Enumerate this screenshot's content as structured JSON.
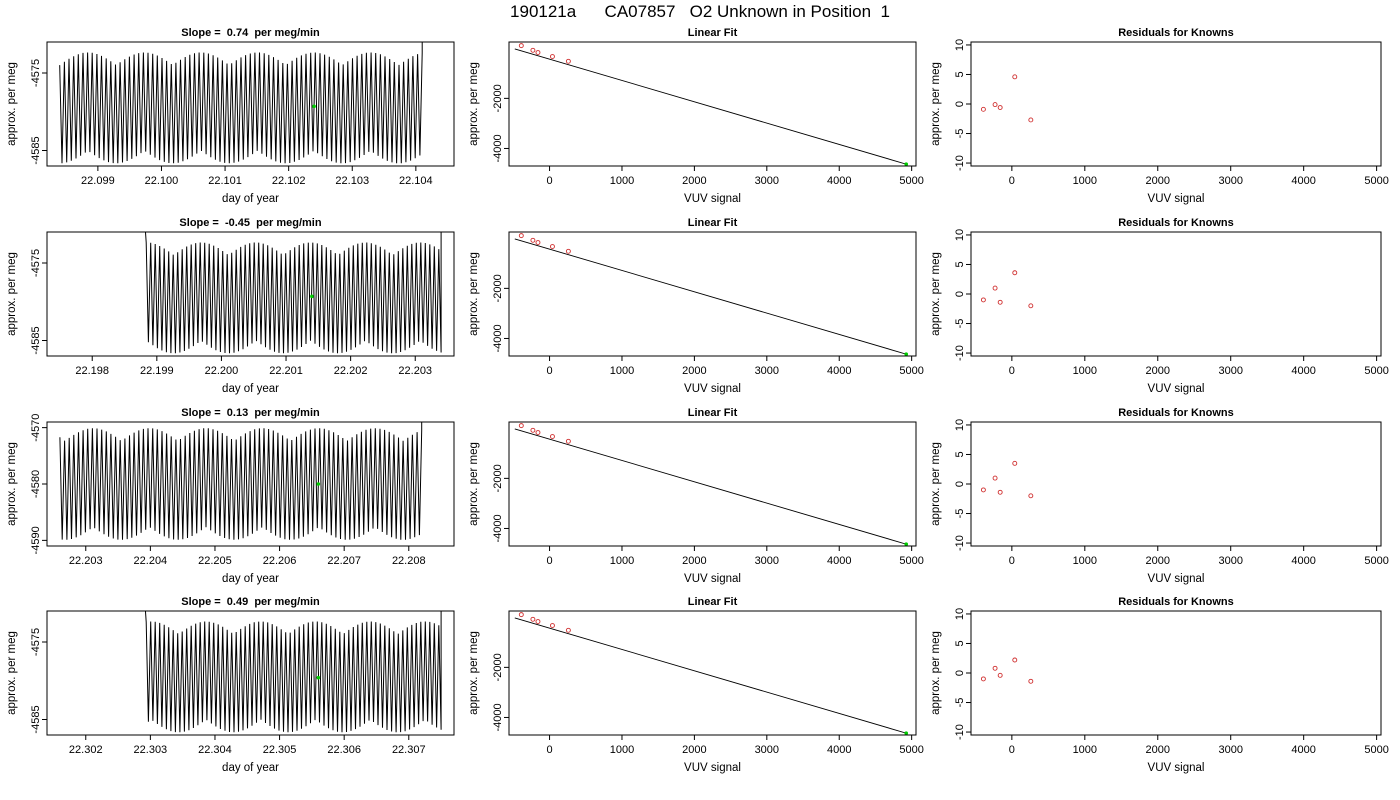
{
  "main_title": "190121a      CA07857   O2 Unknown in Position  1",
  "chart_data": [
    {
      "type": "line",
      "panel": "trace",
      "title": "Slope =  0.74  per meg/min",
      "xlabel": "day of year",
      "ylabel": "approx. per meg",
      "xlim": [
        22.0982,
        22.1046
      ],
      "ylim": [
        -4587,
        -4571
      ],
      "xticks": [
        22.099,
        22.1,
        22.101,
        22.102,
        22.103,
        22.104
      ],
      "xtick_labels": [
        "22.099",
        "22.100",
        "22.101",
        "22.102",
        "22.103",
        "22.104"
      ],
      "yticks": [
        -4575,
        -4585
      ],
      "ytick_labels": [
        "-4575",
        "-4585"
      ],
      "trace": {
        "x_start": 22.0984,
        "x_end": 22.1041,
        "center": -4579.5,
        "amplitude": 6.5,
        "cycles": 78,
        "start_offset": 0
      },
      "marker": {
        "x": 22.1024,
        "y": -4579.3,
        "color": "#00cc00"
      }
    },
    {
      "type": "scatter",
      "panel": "linear-fit",
      "title": "Linear Fit",
      "xlabel": "VUV signal",
      "ylabel": "approx. per meg",
      "xlim": [
        -560,
        5060
      ],
      "ylim": [
        -4700,
        250
      ],
      "xticks": [
        0,
        1000,
        2000,
        3000,
        4000,
        5000
      ],
      "xtick_labels": [
        "0",
        "1000",
        "2000",
        "3000",
        "4000",
        "5000"
      ],
      "yticks": [
        -2000,
        -4000
      ],
      "ytick_labels": [
        "-2000",
        "-4000"
      ],
      "fit_line": {
        "x": [
          -480,
          4940
        ],
        "y": [
          -25,
          -4640
        ]
      },
      "known_points": {
        "x": [
          -390,
          -230,
          -160,
          40,
          260
        ],
        "y": [
          105,
          -80,
          -170,
          -330,
          -520
        ]
      },
      "unknown_point": {
        "x": 4925,
        "y": -4628
      }
    },
    {
      "type": "scatter",
      "panel": "residuals",
      "title": "Residuals for Knowns",
      "xlabel": "VUV signal",
      "ylabel": "approx. per meg",
      "xlim": [
        -560,
        5060
      ],
      "ylim": [
        -10.5,
        10.5
      ],
      "xticks": [
        0,
        1000,
        2000,
        3000,
        4000,
        5000
      ],
      "xtick_labels": [
        "0",
        "1000",
        "2000",
        "3000",
        "4000",
        "5000"
      ],
      "yticks": [
        -10,
        -5,
        0,
        5,
        10
      ],
      "ytick_labels": [
        "-10",
        "-5",
        "0",
        "5",
        "10"
      ],
      "points": {
        "x": [
          -390,
          -230,
          -160,
          40,
          260
        ],
        "y": [
          -0.9,
          -0.1,
          -0.6,
          4.6,
          -2.7
        ]
      }
    },
    {
      "type": "line",
      "panel": "trace",
      "title": "Slope =  -0.45  per meg/min",
      "xlabel": "day of year",
      "ylabel": "approx. per meg",
      "xlim": [
        22.1973,
        22.2036
      ],
      "ylim": [
        -4587,
        -4571
      ],
      "xticks": [
        22.198,
        22.199,
        22.2,
        22.201,
        22.202,
        22.203
      ],
      "xtick_labels": [
        "22.198",
        "22.199",
        "22.200",
        "22.201",
        "22.202",
        "22.203"
      ],
      "yticks": [
        -4575,
        -4585
      ],
      "ytick_labels": [
        "-4575",
        "-4585"
      ],
      "trace": {
        "x_start": 22.1988,
        "x_end": 22.2034,
        "center": -4579.5,
        "amplitude": 6.5,
        "cycles": 66,
        "start_offset": 0.25
      },
      "marker": {
        "x": 22.2014,
        "y": -4579.3,
        "color": "#00cc00"
      }
    },
    {
      "type": "scatter",
      "panel": "linear-fit",
      "title": "Linear Fit",
      "xlabel": "VUV signal",
      "ylabel": "approx. per meg",
      "xlim": [
        -560,
        5060
      ],
      "ylim": [
        -4700,
        250
      ],
      "xticks": [
        0,
        1000,
        2000,
        3000,
        4000,
        5000
      ],
      "xtick_labels": [
        "0",
        "1000",
        "2000",
        "3000",
        "4000",
        "5000"
      ],
      "yticks": [
        -2000,
        -4000
      ],
      "ytick_labels": [
        "-2000",
        "-4000"
      ],
      "fit_line": {
        "x": [
          -480,
          4940
        ],
        "y": [
          -25,
          -4640
        ]
      },
      "known_points": {
        "x": [
          -390,
          -230,
          -160,
          40,
          260
        ],
        "y": [
          105,
          -80,
          -170,
          -330,
          -520
        ]
      },
      "unknown_point": {
        "x": 4925,
        "y": -4628
      }
    },
    {
      "type": "scatter",
      "panel": "residuals",
      "title": "Residuals for Knowns",
      "xlabel": "VUV signal",
      "ylabel": "approx. per meg",
      "xlim": [
        -560,
        5060
      ],
      "ylim": [
        -10.5,
        10.5
      ],
      "xticks": [
        0,
        1000,
        2000,
        3000,
        4000,
        5000
      ],
      "xtick_labels": [
        "0",
        "1000",
        "2000",
        "3000",
        "4000",
        "5000"
      ],
      "yticks": [
        -10,
        -5,
        0,
        5,
        10
      ],
      "ytick_labels": [
        "-10",
        "-5",
        "0",
        "5",
        "10"
      ],
      "points": {
        "x": [
          -390,
          -230,
          -160,
          40,
          260
        ],
        "y": [
          -1.0,
          1.0,
          -1.4,
          3.6,
          -2.0
        ]
      }
    },
    {
      "type": "line",
      "panel": "trace",
      "title": "Slope =  0.13  per meg/min",
      "xlabel": "day of year",
      "ylabel": "approx. per meg",
      "xlim": [
        22.2024,
        22.2087
      ],
      "ylim": [
        -4591,
        -4569
      ],
      "xticks": [
        22.203,
        22.204,
        22.205,
        22.206,
        22.207,
        22.208
      ],
      "xtick_labels": [
        "22.203",
        "22.204",
        "22.205",
        "22.206",
        "22.207",
        "22.208"
      ],
      "yticks": [
        -4570,
        -4580,
        -4590
      ],
      "ytick_labels": [
        "-4570",
        "-4580",
        "-4590"
      ],
      "trace": {
        "x_start": 22.2026,
        "x_end": 22.2082,
        "center": -4580,
        "amplitude": 9,
        "cycles": 78,
        "start_offset": 0
      },
      "marker": {
        "x": 22.2066,
        "y": -4580,
        "color": "#00cc00"
      }
    },
    {
      "type": "scatter",
      "panel": "linear-fit",
      "title": "Linear Fit",
      "xlabel": "VUV signal",
      "ylabel": "approx. per meg",
      "xlim": [
        -560,
        5060
      ],
      "ylim": [
        -4700,
        250
      ],
      "xticks": [
        0,
        1000,
        2000,
        3000,
        4000,
        5000
      ],
      "xtick_labels": [
        "0",
        "1000",
        "2000",
        "3000",
        "4000",
        "5000"
      ],
      "yticks": [
        -2000,
        -4000
      ],
      "ytick_labels": [
        "-2000",
        "-4000"
      ],
      "fit_line": {
        "x": [
          -480,
          4940
        ],
        "y": [
          -25,
          -4640
        ]
      },
      "known_points": {
        "x": [
          -390,
          -230,
          -160,
          40,
          260
        ],
        "y": [
          105,
          -80,
          -170,
          -330,
          -520
        ]
      },
      "unknown_point": {
        "x": 4925,
        "y": -4628
      }
    },
    {
      "type": "scatter",
      "panel": "residuals",
      "title": "Residuals for Knowns",
      "xlabel": "VUV signal",
      "ylabel": "approx. per meg",
      "xlim": [
        -560,
        5060
      ],
      "ylim": [
        -10.5,
        10.5
      ],
      "xticks": [
        0,
        1000,
        2000,
        3000,
        4000,
        5000
      ],
      "xtick_labels": [
        "0",
        "1000",
        "2000",
        "3000",
        "4000",
        "5000"
      ],
      "yticks": [
        -10,
        -5,
        0,
        5,
        10
      ],
      "ytick_labels": [
        "-10",
        "-5",
        "0",
        "5",
        "10"
      ],
      "points": {
        "x": [
          -390,
          -230,
          -160,
          40,
          260
        ],
        "y": [
          -1.0,
          1.0,
          -1.4,
          3.5,
          -2.0
        ]
      }
    },
    {
      "type": "line",
      "panel": "trace",
      "title": "Slope =  0.49  per meg/min",
      "xlabel": "day of year",
      "ylabel": "approx. per meg",
      "xlim": [
        22.3014,
        22.3077
      ],
      "ylim": [
        -4587,
        -4571
      ],
      "xticks": [
        22.302,
        22.303,
        22.304,
        22.305,
        22.306,
        22.307
      ],
      "xtick_labels": [
        "22.302",
        "22.303",
        "22.304",
        "22.305",
        "22.306",
        "22.307"
      ],
      "yticks": [
        -4575,
        -4585
      ],
      "ytick_labels": [
        "-4575",
        "-4585"
      ],
      "trace": {
        "x_start": 22.3029,
        "x_end": 22.3075,
        "center": -4579.5,
        "amplitude": 6.5,
        "cycles": 66,
        "start_offset": 0.25
      },
      "marker": {
        "x": 22.3056,
        "y": -4579.6,
        "color": "#00cc00"
      }
    },
    {
      "type": "scatter",
      "panel": "linear-fit",
      "title": "Linear Fit",
      "xlabel": "VUV signal",
      "ylabel": "approx. per meg",
      "xlim": [
        -560,
        5060
      ],
      "ylim": [
        -4700,
        250
      ],
      "xticks": [
        0,
        1000,
        2000,
        3000,
        4000,
        5000
      ],
      "xtick_labels": [
        "0",
        "1000",
        "2000",
        "3000",
        "4000",
        "5000"
      ],
      "yticks": [
        -2000,
        -4000
      ],
      "ytick_labels": [
        "-2000",
        "-4000"
      ],
      "fit_line": {
        "x": [
          -480,
          4940
        ],
        "y": [
          -25,
          -4640
        ]
      },
      "known_points": {
        "x": [
          -390,
          -230,
          -160,
          40,
          260
        ],
        "y": [
          105,
          -80,
          -170,
          -330,
          -520
        ]
      },
      "unknown_point": {
        "x": 4925,
        "y": -4628
      }
    },
    {
      "type": "scatter",
      "panel": "residuals",
      "title": "Residuals for Knowns",
      "xlabel": "VUV signal",
      "ylabel": "approx. per meg",
      "xlim": [
        -560,
        5060
      ],
      "ylim": [
        -10.5,
        10.5
      ],
      "xticks": [
        0,
        1000,
        2000,
        3000,
        4000,
        5000
      ],
      "xtick_labels": [
        "0",
        "1000",
        "2000",
        "3000",
        "4000",
        "5000"
      ],
      "yticks": [
        -10,
        -5,
        0,
        5,
        10
      ],
      "ytick_labels": [
        "-10",
        "-5",
        "0",
        "5",
        "10"
      ],
      "points": {
        "x": [
          -390,
          -230,
          -160,
          40,
          260
        ],
        "y": [
          -1.0,
          0.8,
          -0.4,
          2.2,
          -1.4
        ]
      }
    }
  ],
  "colors": {
    "trace_line": "#000000",
    "fit_line": "#000000",
    "known_points": "#d03030",
    "unknown_point": "#00cc00",
    "axes": "#000000"
  }
}
